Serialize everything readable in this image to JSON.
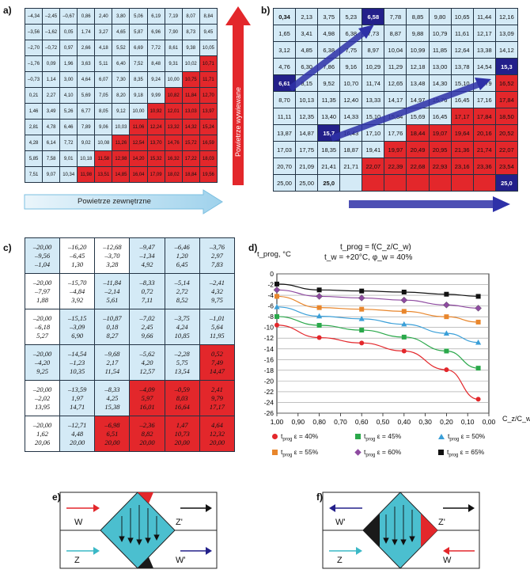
{
  "panels": {
    "a": "a)",
    "b": "b)",
    "c": "c)",
    "d": "d)",
    "e": "e)",
    "f": "f)"
  },
  "panel_a": {
    "arrow_vertical_label": "Powietrze wywiewane",
    "arrow_horizontal_label": "Powietrze zewnętrzne",
    "colors": {
      "light": "#d4eaf6",
      "red": "#e3272b",
      "white": "#ffffff"
    },
    "rows": [
      [
        "–4,34",
        "–2,45",
        "–0,67",
        "0,86",
        "2,40",
        "3,80",
        "5,06",
        "6,19",
        "7,19",
        "8,07",
        "8,84"
      ],
      [
        "–3,56",
        "–1,62",
        "0,05",
        "1,74",
        "3,27",
        "4,65",
        "5,87",
        "6,96",
        "7,90",
        "8,73",
        "9,45"
      ],
      [
        "–2,70",
        "–0,72",
        "0,97",
        "2,66",
        "4,18",
        "5,52",
        "6,69",
        "7,72",
        "8,61",
        "9,38",
        "10,05"
      ],
      [
        "–1,76",
        "0,09",
        "1,96",
        "3,63",
        "5,11",
        "6,40",
        "7,52",
        "8,48",
        "9,31",
        "10,02",
        "10,71"
      ],
      [
        "–0,73",
        "1,14",
        "3,00",
        "4,64",
        "6,07",
        "7,30",
        "8,35",
        "9,24",
        "10,00",
        "10,75",
        "11,71"
      ],
      [
        "0,21",
        "2,27",
        "4,10",
        "5,69",
        "7,05",
        "8,20",
        "9,18",
        "9,99",
        "10,82",
        "11,84",
        "12,70"
      ],
      [
        "1,46",
        "3,49",
        "5,26",
        "6,77",
        "8,05",
        "9,12",
        "10,00",
        "10,92",
        "12,01",
        "13,03",
        "13,97"
      ],
      [
        "2,81",
        "4,78",
        "6,46",
        "7,89",
        "9,06",
        "10,03",
        "11,06",
        "12,24",
        "13,32",
        "14,32",
        "15,24"
      ],
      [
        "4,28",
        "6,14",
        "7,72",
        "9,02",
        "10,08",
        "11,26",
        "12,54",
        "13,70",
        "14,76",
        "15,72",
        "16,59"
      ],
      [
        "5,85",
        "7,58",
        "9,01",
        "10,18",
        "11,58",
        "12,98",
        "14,20",
        "15,32",
        "16,32",
        "17,22",
        "18,03"
      ],
      [
        "7,51",
        "9,07",
        "10,34",
        "11,98",
        "13,51",
        "14,85",
        "16,04",
        "17,09",
        "18,02",
        "18,84",
        "19,56"
      ]
    ],
    "red_start": [
      11,
      11,
      11,
      10,
      9,
      8,
      7,
      6,
      5,
      4,
      3
    ]
  },
  "panel_b": {
    "rows": [
      [
        "0,34",
        "2,13",
        "3,75",
        "5,23",
        "6,58",
        "7,78",
        "8,85",
        "9,80",
        "10,65",
        "11,44",
        "12,16"
      ],
      [
        "1,65",
        "3,41",
        "4,98",
        "6,38",
        "7,73",
        "8,87",
        "9,88",
        "10,79",
        "11,61",
        "12,17",
        "13,09"
      ],
      [
        "3,12",
        "4,85",
        "6,38",
        "7,75",
        "8,97",
        "10,04",
        "10,99",
        "11,85",
        "12,64",
        "13,38",
        "14,12"
      ],
      [
        "4,76",
        "6,30",
        "7,86",
        "9,16",
        "10,29",
        "11,29",
        "12,18",
        "13,00",
        "13,78",
        "14,54",
        "15,3"
      ],
      [
        "6,61",
        "8,15",
        "9,52",
        "10,70",
        "11,74",
        "12,65",
        "13,48",
        "14,30",
        "15,10",
        "15,79",
        "16,52"
      ],
      [
        "8,70",
        "10,13",
        "11,35",
        "12,40",
        "13,33",
        "14,17",
        "14,97",
        "15,76",
        "16,45",
        "17,16",
        "17,84"
      ],
      [
        "11,11",
        "12,35",
        "13,40",
        "14,33",
        "15,10",
        "15,84",
        "15,69",
        "16,45",
        "17,17",
        "17,84",
        "18,50"
      ],
      [
        "13,87",
        "14,87",
        "15,7",
        "16,43",
        "17,10",
        "17,76",
        "18,44",
        "19,07",
        "19,64",
        "20,16",
        "20,52"
      ],
      [
        "17,03",
        "17,75",
        "18,35",
        "18,87",
        "19,41",
        "19,97",
        "20,49",
        "20,95",
        "21,36",
        "21,74",
        "22,07"
      ],
      [
        "20,70",
        "21,09",
        "21,41",
        "21,71",
        "22,07",
        "22,39",
        "22,68",
        "22,93",
        "23,16",
        "23,36",
        "23,54"
      ],
      [
        "25,00",
        "25,00",
        "25,0",
        "",
        "",
        "",
        "",
        "",
        "",
        "",
        "25,0"
      ]
    ],
    "red_start": [
      11,
      11,
      11,
      11,
      10,
      10,
      8,
      6,
      5,
      4,
      4
    ],
    "navy_cells": [
      [
        0,
        4
      ],
      [
        3,
        10
      ],
      [
        4,
        0
      ],
      [
        7,
        2
      ],
      [
        10,
        10
      ]
    ],
    "bold_cells": [
      [
        0,
        0
      ],
      [
        10,
        2
      ]
    ],
    "colors": {
      "navy": "#23208a"
    }
  },
  "panel_c": {
    "rows": [
      [
        [
          "–20,00",
          "–9,56",
          "–1,04"
        ],
        [
          "–16,20",
          "–6,45",
          "1,30"
        ],
        [
          "–12,68",
          "–3,70",
          "3,28"
        ],
        [
          "–9,47",
          "–1,34",
          "4,92"
        ],
        [
          "–6,46",
          "1,20",
          "6,45"
        ],
        [
          "–3,76",
          "2,97",
          "7,83"
        ]
      ],
      [
        [
          "–20,00",
          "–7,97",
          "1,88"
        ],
        [
          "–15,70",
          "–4,84",
          "3,92"
        ],
        [
          "–11,84",
          "–2,14",
          "5,61"
        ],
        [
          "–8,33",
          "0,72",
          "7,11"
        ],
        [
          "–5,14",
          "2,72",
          "8,52"
        ],
        [
          "–2,41",
          "4,32",
          "9,75"
        ]
      ],
      [
        [
          "–20,00",
          "–6,18",
          "5,27"
        ],
        [
          "–15,15",
          "–3,09",
          "6,90"
        ],
        [
          "–10,87",
          "0,18",
          "8,27"
        ],
        [
          "–7,02",
          "2,45",
          "9,66"
        ],
        [
          "–3,75",
          "4,24",
          "10,85"
        ],
        [
          "–1,01",
          "5,64",
          "11,95"
        ]
      ],
      [
        [
          "–20,00",
          "–4,20",
          "9,25"
        ],
        [
          "–14,54",
          "–1,23",
          "10,35"
        ],
        [
          "–9,68",
          "2,17",
          "11,54"
        ],
        [
          "–5,62",
          "4,20",
          "12,57"
        ],
        [
          "–2,28",
          "5,75",
          "13,54"
        ],
        [
          "0,52",
          "7,49",
          "14,47"
        ]
      ],
      [
        [
          "–20,00",
          "–2,02",
          "13,95"
        ],
        [
          "–13,59",
          "1,97",
          "14,71"
        ],
        [
          "–8,33",
          "4,25",
          "15,38"
        ],
        [
          "–4,09",
          "5,97",
          "16,01"
        ],
        [
          "–0,59",
          "8,03",
          "16,64"
        ],
        [
          "2,41",
          "9,79",
          "17,17"
        ]
      ],
      [
        [
          "–20,00",
          "1,62",
          "20,06"
        ],
        [
          "–12,71",
          "4,48",
          "20,00"
        ],
        [
          "–6,98",
          "6,51",
          "20,00"
        ],
        [
          "–2,36",
          "8,82",
          "20,00"
        ],
        [
          "1,47",
          "10,73",
          "20,00"
        ],
        [
          "4,64",
          "12,32",
          "20,00"
        ]
      ]
    ],
    "color_map": [
      [
        "blue",
        "white",
        "white",
        "blue",
        "blue",
        "blue"
      ],
      [
        "white",
        "white",
        "blue",
        "blue",
        "blue",
        "blue"
      ],
      [
        "white",
        "blue",
        "blue",
        "blue",
        "blue",
        "blue"
      ],
      [
        "blue",
        "blue",
        "blue",
        "blue",
        "blue",
        "red"
      ],
      [
        "white",
        "blue",
        "blue",
        "red",
        "red",
        "red"
      ],
      [
        "white",
        "blue",
        "red",
        "red",
        "red",
        "red"
      ]
    ]
  },
  "chart_data": {
    "type": "line",
    "title_line1": "t_prog = f(C_z/C_w)",
    "title_line2": "t_w = +20°C, φ_w = 40%",
    "ylabel": "t_prog, °C",
    "xlabel": "C_z/C_w",
    "xlim": [
      1.0,
      0.0
    ],
    "ylim": [
      -26,
      0
    ],
    "x_ticks": [
      "1,00",
      "0,90",
      "0,80",
      "0,70",
      "0,60",
      "0,50",
      "0,40",
      "0,30",
      "0,20",
      "0,10",
      "0,00"
    ],
    "y_ticks": [
      "0",
      "-2",
      "-4",
      "-6",
      "-8",
      "-10",
      "-12",
      "-14",
      "-16",
      "-18",
      "-20",
      "-22",
      "-24",
      "-26"
    ],
    "grid": true,
    "legend_position": "bottom",
    "series": [
      {
        "name": "t_prog ε = 40%",
        "color": "#e3272b",
        "marker": "circle",
        "x": [
          1.0,
          0.8,
          0.6,
          0.4,
          0.2,
          0.05
        ],
        "y": [
          -9.56,
          -11.9,
          -12.9,
          -14.4,
          -17.9,
          -23.4
        ]
      },
      {
        "name": "t_prog ε = 45%",
        "color": "#2aa84a",
        "marker": "square",
        "x": [
          1.0,
          0.8,
          0.6,
          0.4,
          0.2,
          0.05
        ],
        "y": [
          -7.97,
          -9.6,
          -10.5,
          -11.8,
          -14.4,
          -17.6
        ]
      },
      {
        "name": "t_prog ε = 50%",
        "color": "#3a9fd8",
        "marker": "triangle",
        "x": [
          1.0,
          0.8,
          0.6,
          0.4,
          0.2,
          0.05
        ],
        "y": [
          -6.18,
          -7.9,
          -8.4,
          -9.4,
          -11.1,
          -12.8
        ]
      },
      {
        "name": "t_prog ε = 55%",
        "color": "#e8862c",
        "marker": "square",
        "x": [
          1.0,
          0.8,
          0.6,
          0.4,
          0.2,
          0.05
        ],
        "y": [
          -4.2,
          -6.3,
          -6.6,
          -7.0,
          -8.0,
          -9.0
        ]
      },
      {
        "name": "t_prog ε = 60%",
        "color": "#8e4aa0",
        "marker": "diamond",
        "x": [
          1.0,
          0.8,
          0.6,
          0.4,
          0.2,
          0.05
        ],
        "y": [
          -3.0,
          -4.2,
          -4.5,
          -4.9,
          -5.8,
          -6.4
        ]
      },
      {
        "name": "t_prog ε = 65%",
        "color": "#111111",
        "marker": "square",
        "x": [
          1.0,
          0.8,
          0.6,
          0.4,
          0.2,
          0.05
        ],
        "y": [
          -1.9,
          -3.0,
          -3.2,
          -3.4,
          -3.8,
          -4.2
        ]
      }
    ],
    "legend": [
      {
        "label": "ε = 40%",
        "color": "#e3272b",
        "marker": "circle"
      },
      {
        "label": "ε = 45%",
        "color": "#2aa84a",
        "marker": "square"
      },
      {
        "label": "ε = 50%",
        "color": "#3a9fd8",
        "marker": "triangle"
      },
      {
        "label": "ε = 55%",
        "color": "#e8862c",
        "marker": "square"
      },
      {
        "label": "ε = 60%",
        "color": "#8e4aa0",
        "marker": "diamond"
      },
      {
        "label": "ε = 65%",
        "color": "#111111",
        "marker": "square"
      }
    ],
    "legend_prefix": "t",
    "legend_sub": "prog"
  },
  "panel_e": {
    "left_top": "W",
    "left_bottom": "Z",
    "right_top": "Z'",
    "right_bottom": "W'"
  },
  "panel_f": {
    "left_top": "W'",
    "left_bottom": "Z",
    "right_top": "Z'",
    "right_bottom": "W"
  },
  "diagram_colors": {
    "fill": "#4bbfcf",
    "red": "#e3272b",
    "black": "#1a1a1a",
    "navy": "#23208a",
    "cyan": "#3ab8c6"
  }
}
